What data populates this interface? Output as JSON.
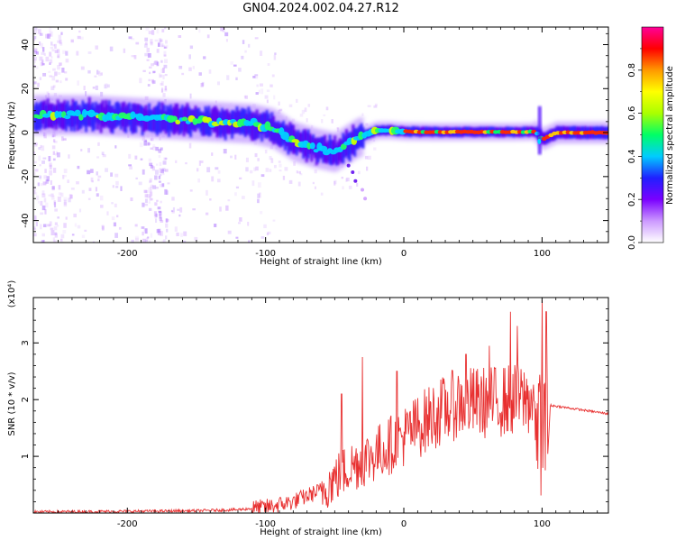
{
  "title": "GN04.2024.002.04.27.R12",
  "chart_data": [
    {
      "type": "heatmap",
      "xlabel": "Height of straight line (km)",
      "ylabel": "Frequency (Hz)",
      "xlim": [
        -268,
        148
      ],
      "ylim": [
        -50,
        48
      ],
      "x_ticks": [
        -200,
        -100,
        0,
        100
      ],
      "y_ticks": [
        40,
        20,
        0,
        -20,
        -40
      ],
      "x_tick_labels": [
        "-200",
        "-100",
        "0",
        "100"
      ],
      "y_tick_labels": [
        "40",
        "20",
        "0",
        "-20",
        "-40"
      ],
      "colorbar": {
        "label": "Normalized spectral amplitude",
        "range": [
          0,
          1
        ],
        "ticks": [
          0.0,
          0.2,
          0.4,
          0.6,
          0.8
        ],
        "tick_labels": [
          "0.0",
          "0.2",
          "0.4",
          "0.6",
          "0.8"
        ],
        "colors": [
          "#ffffff",
          "#cc99ff",
          "#7a00ff",
          "#2020ff",
          "#00ccff",
          "#00ff66",
          "#aaff00",
          "#ffff00",
          "#ff9900",
          "#ff0000",
          "#ff0099"
        ]
      },
      "ridge": {
        "x": [
          -268,
          -230,
          -200,
          -170,
          -140,
          -110,
          -95,
          -80,
          -65,
          -50,
          -40,
          -35,
          -28,
          -20,
          -10,
          0,
          20,
          50,
          80,
          95,
          100,
          110,
          148
        ],
        "y": [
          8,
          8,
          7,
          6,
          5,
          4,
          2,
          -4,
          -7,
          -9,
          -5,
          -3,
          -1,
          1,
          1,
          0.5,
          0.3,
          0.3,
          0.3,
          0.5,
          -3,
          0,
          0
        ]
      }
    },
    {
      "type": "line",
      "xlabel": "Height of straight line (km)",
      "ylabel": "SNR (10 * v/v)",
      "y_scale_label": "(x10⁴)",
      "xlim": [
        -268,
        148
      ],
      "ylim": [
        0,
        3.8
      ],
      "x_ticks": [
        -200,
        -100,
        0,
        100
      ],
      "y_ticks": [
        1,
        2,
        3
      ],
      "x_tick_labels": [
        "-200",
        "-100",
        "0",
        "100"
      ],
      "y_tick_labels": [
        "1",
        "2",
        "3"
      ],
      "color": "#e83030",
      "envelope": {
        "x": [
          -268,
          -200,
          -150,
          -120,
          -100,
          -80,
          -60,
          -40,
          -20,
          0,
          20,
          40,
          60,
          80,
          95,
          100,
          103,
          106,
          120,
          148
        ],
        "y": [
          0.02,
          0.03,
          0.04,
          0.06,
          0.1,
          0.2,
          0.4,
          0.8,
          1.05,
          1.35,
          1.7,
          1.95,
          1.95,
          2.0,
          2.0,
          1.2,
          0.5,
          1.9,
          1.85,
          1.75
        ]
      },
      "spikes": [
        {
          "x": -45,
          "y": 2.1
        },
        {
          "x": -30,
          "y": 2.75
        },
        {
          "x": -5,
          "y": 2.5
        },
        {
          "x": 45,
          "y": 2.8
        },
        {
          "x": 62,
          "y": 2.95
        },
        {
          "x": 77,
          "y": 3.55
        },
        {
          "x": 82,
          "y": 3.3
        },
        {
          "x": 100,
          "y": 3.75
        },
        {
          "x": 103,
          "y": 3.55
        }
      ]
    }
  ]
}
